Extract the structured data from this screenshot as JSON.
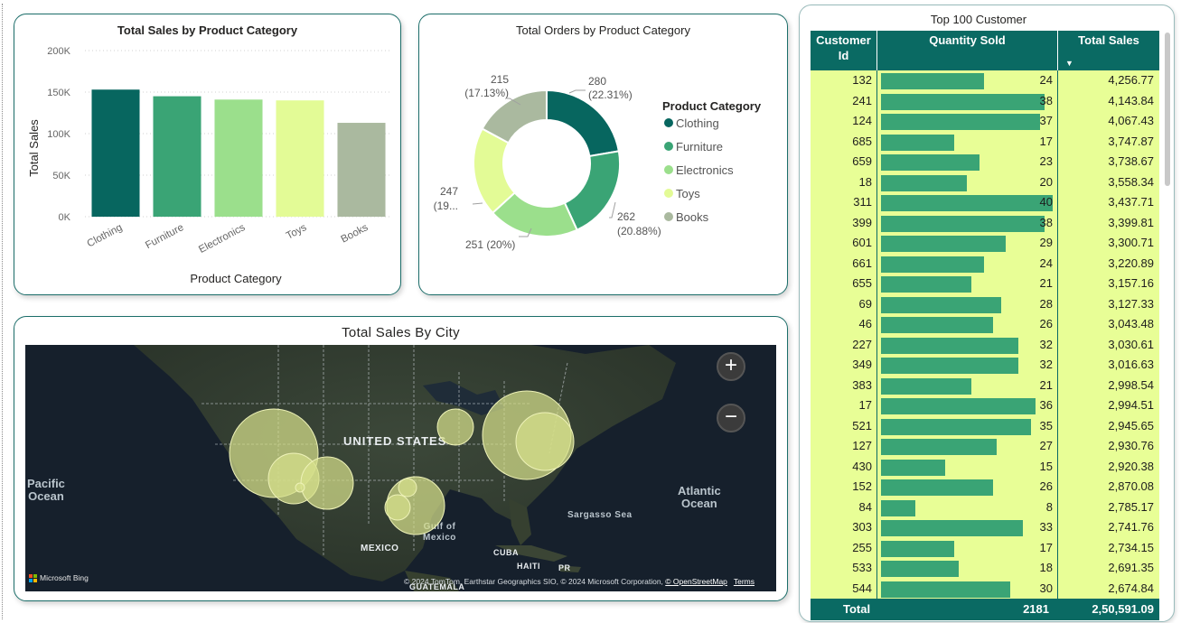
{
  "colors": {
    "clothing": "#07665f",
    "furniture": "#3aa475",
    "electronics": "#9bdf8c",
    "toys": "#e3fb96",
    "books": "#aab99f",
    "table_header": "#0a6a63",
    "table_row": "#e8fe96"
  },
  "bar_card": {
    "title": "Total Sales by Product Category",
    "ylabel": "Total Sales",
    "xlabel": "Product Category",
    "yticks": [
      "200K",
      "150K",
      "100K",
      "50K",
      "0K"
    ]
  },
  "donut_card": {
    "title": "Total Orders by Product Category",
    "legend_title": "Product Category",
    "labels": [
      {
        "value": "280",
        "pct": "(22.31%)"
      },
      {
        "value": "262",
        "pct": "(20.88%)"
      },
      {
        "value": "251 (20%)",
        "pct": ""
      },
      {
        "value": "247",
        "pct": "(19..."
      },
      {
        "value": "215",
        "pct": "(17.13%)"
      }
    ]
  },
  "map_card": {
    "title": "Total Sales By City",
    "labels": {
      "country": "UNITED STATES",
      "pacific_1": "Pacific",
      "pacific_2": "Ocean",
      "atlantic_1": "Atlantic",
      "atlantic_2": "Ocean",
      "sargasso": "Sargasso Sea",
      "gulf_1": "Gulf of",
      "gulf_2": "Mexico",
      "mexico": "MEXICO",
      "cuba": "CUBA",
      "haiti": "HAITI",
      "pr": "PR",
      "guatemala": "GUATEMALA"
    },
    "bing": "Microsoft Bing",
    "attribution": "© 2024 TomTom, Earthstar Geographics SIO, © 2024 Microsoft Corporation,",
    "osm": "© OpenStreetMap",
    "terms": "Terms",
    "zoom_in": "+",
    "zoom_out": "−"
  },
  "chart_data": [
    {
      "type": "bar",
      "title": "Total Sales by Product Category",
      "xlabel": "Product Category",
      "ylabel": "Total Sales",
      "categories": [
        "Clothing",
        "Furniture",
        "Electronics",
        "Toys",
        "Books"
      ],
      "values": [
        153000,
        145000,
        141000,
        140000,
        113000
      ],
      "ylim": [
        0,
        200000
      ],
      "yticks": [
        0,
        50000,
        100000,
        150000,
        200000
      ],
      "grid": true
    },
    {
      "type": "pie",
      "title": "Total Orders by Product Category",
      "categories": [
        "Clothing",
        "Furniture",
        "Electronics",
        "Toys",
        "Books"
      ],
      "values": [
        280,
        262,
        251,
        247,
        215
      ],
      "percent": [
        22.31,
        20.88,
        20.0,
        19.68,
        17.13
      ],
      "legend": "right"
    }
  ],
  "table": {
    "title": "Top 100 Customer",
    "col_customer": "Customer Id",
    "col_customer_1": "Customer",
    "col_customer_2": "Id",
    "col_qty": "Quantity Sold",
    "col_sales": "Total Sales",
    "sort_icon": "▼",
    "max_qty": 40,
    "rows": [
      {
        "id": "132",
        "qty": 24,
        "qty_label": "24",
        "sales": "4,256.77"
      },
      {
        "id": "241",
        "qty": 38,
        "qty_label": "38",
        "sales": "4,143.84"
      },
      {
        "id": "124",
        "qty": 37,
        "qty_label": "37",
        "sales": "4,067.43"
      },
      {
        "id": "685",
        "qty": 17,
        "qty_label": "17",
        "sales": "3,747.87"
      },
      {
        "id": "659",
        "qty": 23,
        "qty_label": "23",
        "sales": "3,738.67"
      },
      {
        "id": "18",
        "qty": 20,
        "qty_label": "20",
        "sales": "3,558.34"
      },
      {
        "id": "311",
        "qty": 40,
        "qty_label": "40",
        "sales": "3,437.71"
      },
      {
        "id": "399",
        "qty": 38,
        "qty_label": "38",
        "sales": "3,399.81"
      },
      {
        "id": "601",
        "qty": 29,
        "qty_label": "29",
        "sales": "3,300.71"
      },
      {
        "id": "661",
        "qty": 24,
        "qty_label": "24",
        "sales": "3,220.89"
      },
      {
        "id": "655",
        "qty": 21,
        "qty_label": "21",
        "sales": "3,157.16"
      },
      {
        "id": "69",
        "qty": 28,
        "qty_label": "28",
        "sales": "3,127.33"
      },
      {
        "id": "46",
        "qty": 26,
        "qty_label": "26",
        "sales": "3,043.48"
      },
      {
        "id": "227",
        "qty": 32,
        "qty_label": "32",
        "sales": "3,030.61"
      },
      {
        "id": "349",
        "qty": 32,
        "qty_label": "32",
        "sales": "3,016.63"
      },
      {
        "id": "383",
        "qty": 21,
        "qty_label": "21",
        "sales": "2,998.54"
      },
      {
        "id": "17",
        "qty": 36,
        "qty_label": "36",
        "sales": "2,994.51"
      },
      {
        "id": "521",
        "qty": 35,
        "qty_label": "35",
        "sales": "2,945.65"
      },
      {
        "id": "127",
        "qty": 27,
        "qty_label": "27",
        "sales": "2,930.76"
      },
      {
        "id": "430",
        "qty": 15,
        "qty_label": "15",
        "sales": "2,920.38"
      },
      {
        "id": "152",
        "qty": 26,
        "qty_label": "26",
        "sales": "2,870.08"
      },
      {
        "id": "84",
        "qty": 8,
        "qty_label": "8",
        "sales": "2,785.17"
      },
      {
        "id": "303",
        "qty": 33,
        "qty_label": "33",
        "sales": "2,741.76"
      },
      {
        "id": "255",
        "qty": 17,
        "qty_label": "17",
        "sales": "2,734.15"
      },
      {
        "id": "533",
        "qty": 18,
        "qty_label": "18",
        "sales": "2,691.35"
      },
      {
        "id": "544",
        "qty": 30,
        "qty_label": "30",
        "sales": "2,674.84"
      }
    ],
    "total_label": "Total",
    "total_qty": "2181",
    "total_sales": "2,50,591.09"
  }
}
